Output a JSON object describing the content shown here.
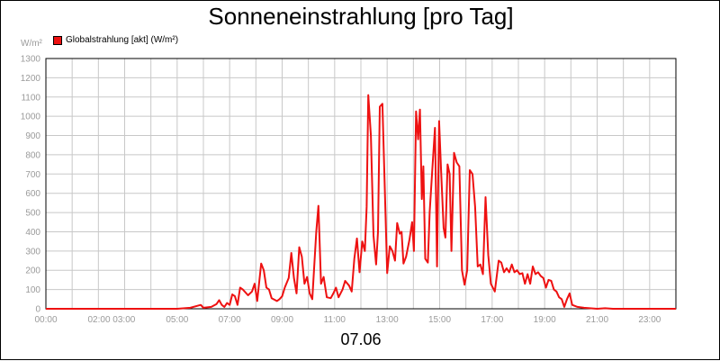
{
  "chart_data": {
    "type": "line",
    "title": "Sonneneinstrahlung [pro Tag]",
    "ylabel": "W/m²",
    "xlabel": "07.06",
    "legend_position": "top-left",
    "grid": true,
    "ylim": [
      0,
      1300
    ],
    "xlim": [
      0,
      24
    ],
    "y_ticks": [
      "0",
      "100",
      "200",
      "300",
      "400",
      "500",
      "600",
      "700",
      "800",
      "900",
      "1000",
      "1100",
      "1200",
      "1300"
    ],
    "x_ticks": [
      {
        "x": 0,
        "label": "00:00"
      },
      {
        "x": 2.5,
        "label": "02:00 03:00"
      },
      {
        "x": 5,
        "label": "05:00"
      },
      {
        "x": 7,
        "label": "07:00"
      },
      {
        "x": 9,
        "label": "09:00"
      },
      {
        "x": 11,
        "label": "11:00"
      },
      {
        "x": 13,
        "label": "13:00"
      },
      {
        "x": 15,
        "label": "15:00"
      },
      {
        "x": 17,
        "label": "17:00"
      },
      {
        "x": 19,
        "label": "19:00"
      },
      {
        "x": 21,
        "label": "21:00"
      },
      {
        "x": 23,
        "label": "23:00"
      }
    ],
    "series": [
      {
        "name": "Globalstrahlung [akt] (W/m²)",
        "color": "#ee1111",
        "points": [
          [
            0,
            0
          ],
          [
            5.0,
            0
          ],
          [
            5.5,
            5
          ],
          [
            5.9,
            20
          ],
          [
            6.0,
            5
          ],
          [
            6.3,
            10
          ],
          [
            6.5,
            25
          ],
          [
            6.6,
            45
          ],
          [
            6.7,
            20
          ],
          [
            6.8,
            10
          ],
          [
            6.9,
            30
          ],
          [
            7.0,
            20
          ],
          [
            7.1,
            75
          ],
          [
            7.2,
            65
          ],
          [
            7.3,
            20
          ],
          [
            7.4,
            110
          ],
          [
            7.5,
            100
          ],
          [
            7.7,
            70
          ],
          [
            7.85,
            90
          ],
          [
            7.95,
            130
          ],
          [
            8.05,
            40
          ],
          [
            8.2,
            235
          ],
          [
            8.3,
            200
          ],
          [
            8.4,
            110
          ],
          [
            8.5,
            100
          ],
          [
            8.6,
            55
          ],
          [
            8.8,
            40
          ],
          [
            8.9,
            50
          ],
          [
            9.0,
            65
          ],
          [
            9.1,
            110
          ],
          [
            9.25,
            160
          ],
          [
            9.35,
            290
          ],
          [
            9.45,
            160
          ],
          [
            9.55,
            80
          ],
          [
            9.65,
            320
          ],
          [
            9.75,
            270
          ],
          [
            9.85,
            130
          ],
          [
            9.95,
            165
          ],
          [
            10.05,
            80
          ],
          [
            10.15,
            50
          ],
          [
            10.3,
            400
          ],
          [
            10.38,
            535
          ],
          [
            10.48,
            130
          ],
          [
            10.58,
            165
          ],
          [
            10.7,
            60
          ],
          [
            10.85,
            55
          ],
          [
            10.95,
            80
          ],
          [
            11.05,
            110
          ],
          [
            11.15,
            60
          ],
          [
            11.3,
            100
          ],
          [
            11.4,
            145
          ],
          [
            11.55,
            120
          ],
          [
            11.65,
            90
          ],
          [
            11.75,
            260
          ],
          [
            11.85,
            365
          ],
          [
            11.95,
            190
          ],
          [
            12.05,
            350
          ],
          [
            12.15,
            300
          ],
          [
            12.22,
            530
          ],
          [
            12.28,
            1110
          ],
          [
            12.38,
            900
          ],
          [
            12.48,
            380
          ],
          [
            12.58,
            230
          ],
          [
            12.65,
            400
          ],
          [
            12.72,
            1050
          ],
          [
            12.82,
            1065
          ],
          [
            13.0,
            185
          ],
          [
            13.1,
            325
          ],
          [
            13.2,
            300
          ],
          [
            13.3,
            250
          ],
          [
            13.38,
            445
          ],
          [
            13.48,
            390
          ],
          [
            13.55,
            400
          ],
          [
            13.62,
            235
          ],
          [
            13.72,
            270
          ],
          [
            13.85,
            360
          ],
          [
            13.95,
            450
          ],
          [
            14.02,
            300
          ],
          [
            14.1,
            1025
          ],
          [
            14.18,
            880
          ],
          [
            14.25,
            1035
          ],
          [
            14.32,
            570
          ],
          [
            14.38,
            740
          ],
          [
            14.45,
            260
          ],
          [
            14.55,
            240
          ],
          [
            14.62,
            500
          ],
          [
            14.72,
            720
          ],
          [
            14.82,
            940
          ],
          [
            14.9,
            220
          ],
          [
            14.98,
            975
          ],
          [
            15.05,
            730
          ],
          [
            15.15,
            420
          ],
          [
            15.22,
            370
          ],
          [
            15.3,
            750
          ],
          [
            15.38,
            700
          ],
          [
            15.45,
            300
          ],
          [
            15.55,
            810
          ],
          [
            15.65,
            760
          ],
          [
            15.75,
            740
          ],
          [
            15.85,
            200
          ],
          [
            15.95,
            125
          ],
          [
            16.05,
            200
          ],
          [
            16.15,
            720
          ],
          [
            16.25,
            700
          ],
          [
            16.35,
            530
          ],
          [
            16.45,
            220
          ],
          [
            16.55,
            230
          ],
          [
            16.65,
            180
          ],
          [
            16.75,
            580
          ],
          [
            16.85,
            280
          ],
          [
            16.95,
            130
          ],
          [
            17.1,
            90
          ],
          [
            17.25,
            250
          ],
          [
            17.35,
            240
          ],
          [
            17.45,
            190
          ],
          [
            17.55,
            210
          ],
          [
            17.65,
            190
          ],
          [
            17.75,
            230
          ],
          [
            17.85,
            190
          ],
          [
            17.95,
            200
          ],
          [
            18.05,
            180
          ],
          [
            18.15,
            185
          ],
          [
            18.25,
            130
          ],
          [
            18.35,
            180
          ],
          [
            18.45,
            130
          ],
          [
            18.55,
            220
          ],
          [
            18.65,
            180
          ],
          [
            18.75,
            190
          ],
          [
            18.85,
            170
          ],
          [
            18.95,
            160
          ],
          [
            19.05,
            110
          ],
          [
            19.15,
            150
          ],
          [
            19.25,
            145
          ],
          [
            19.35,
            100
          ],
          [
            19.45,
            90
          ],
          [
            19.55,
            60
          ],
          [
            19.65,
            50
          ],
          [
            19.75,
            10
          ],
          [
            19.85,
            50
          ],
          [
            19.95,
            80
          ],
          [
            20.05,
            20
          ],
          [
            20.25,
            10
          ],
          [
            20.5,
            5
          ],
          [
            21.0,
            0
          ],
          [
            21.3,
            3
          ],
          [
            21.6,
            0
          ],
          [
            24,
            0
          ]
        ]
      }
    ]
  }
}
